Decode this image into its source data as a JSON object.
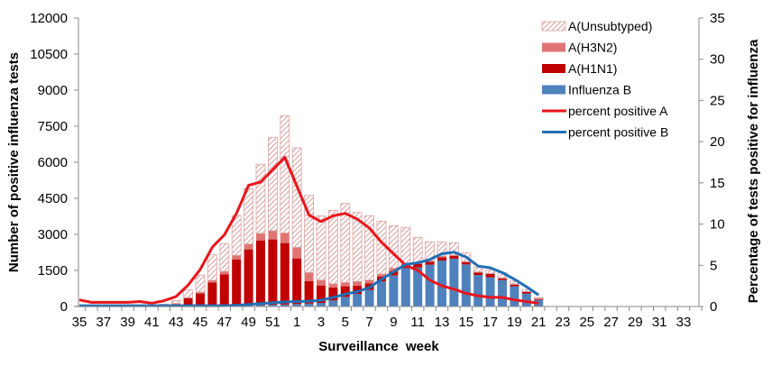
{
  "chart_data": {
    "type": "bar",
    "stacked": true,
    "xlabel": "Surveillance  week",
    "ylabel": "Number of positive influenza tests",
    "y2label": "Percentage of tests positive for influenza",
    "ylim": [
      0,
      12000
    ],
    "yticks": [
      0,
      1500,
      3000,
      4500,
      6000,
      7500,
      9000,
      10500,
      12000
    ],
    "y2lim": [
      0,
      35
    ],
    "y2ticks": [
      0,
      5,
      10,
      15,
      20,
      25,
      30,
      35
    ],
    "grid": false,
    "legend": "top-right",
    "categories": [
      35,
      36,
      37,
      38,
      39,
      40,
      41,
      42,
      43,
      44,
      45,
      46,
      47,
      48,
      49,
      50,
      51,
      52,
      1,
      2,
      3,
      4,
      5,
      6,
      7,
      8,
      9,
      10,
      11,
      12,
      13,
      14,
      15,
      16,
      17,
      18,
      19,
      20,
      21,
      22,
      23,
      24,
      25,
      26,
      27,
      28,
      29,
      30,
      31,
      32,
      33,
      34
    ],
    "xtick_labels": [
      "35",
      "37",
      "39",
      "41",
      "43",
      "45",
      "47",
      "49",
      "51",
      "1",
      "3",
      "5",
      "7",
      "9",
      "11",
      "13",
      "15",
      "17",
      "19",
      "21",
      "23",
      "25",
      "27",
      "29",
      "31",
      "33"
    ],
    "series": [
      {
        "name": "Influenza B",
        "kind": "bar",
        "color": "#4f81bd",
        "values": [
          5,
          5,
          5,
          5,
          5,
          5,
          5,
          5,
          10,
          15,
          20,
          25,
          30,
          40,
          50,
          60,
          70,
          80,
          100,
          120,
          150,
          250,
          400,
          520,
          690,
          1040,
          1290,
          1600,
          1625,
          1740,
          1910,
          1990,
          1750,
          1310,
          1210,
          1100,
          840,
          540,
          275,
          null,
          null,
          null,
          null,
          null,
          null,
          null,
          null,
          null,
          null,
          null,
          null,
          null
        ]
      },
      {
        "name": "A(H1N1)",
        "kind": "bar",
        "color": "#c00000",
        "values": [
          5,
          5,
          5,
          5,
          5,
          5,
          5,
          35,
          90,
          325,
          520,
          975,
          1310,
          1920,
          2325,
          2690,
          2720,
          2560,
          1900,
          940,
          725,
          540,
          440,
          340,
          270,
          210,
          185,
          125,
          150,
          120,
          140,
          120,
          90,
          100,
          140,
          60,
          70,
          60,
          35,
          null,
          null,
          null,
          null,
          null,
          null,
          null,
          null,
          null,
          null,
          null,
          null,
          null
        ]
      },
      {
        "name": "A(H3N2)",
        "kind": "bar",
        "color": "#e07474",
        "values": [
          5,
          5,
          5,
          5,
          5,
          5,
          5,
          20,
          30,
          35,
          60,
          90,
          120,
          165,
          225,
          290,
          360,
          420,
          460,
          350,
          225,
          150,
          160,
          180,
          140,
          100,
          125,
          50,
          25,
          40,
          40,
          30,
          35,
          30,
          25,
          30,
          30,
          25,
          30,
          null,
          null,
          null,
          null,
          null,
          null,
          null,
          null,
          null,
          null,
          null,
          null,
          null
        ]
      },
      {
        "name": "A(Unsubtyped)",
        "kind": "bar-hatched",
        "color": "#d9a3a3",
        "values": [
          10,
          10,
          10,
          10,
          10,
          10,
          10,
          40,
          120,
          315,
          710,
          1060,
          1160,
          1665,
          2310,
          2880,
          3890,
          4880,
          4140,
          3215,
          2675,
          3060,
          3290,
          2870,
          2675,
          2200,
          1760,
          1515,
          1075,
          790,
          600,
          510,
          365,
          185,
          150,
          220,
          120,
          85,
          35,
          null,
          null,
          null,
          null,
          null,
          null,
          null,
          null,
          null,
          null,
          null,
          null,
          null
        ]
      },
      {
        "name": "percent positive A",
        "kind": "line",
        "axis": "right",
        "color": "#e8161b",
        "values": [
          0.8,
          0.5,
          0.5,
          0.5,
          0.5,
          0.6,
          0.4,
          0.7,
          1.2,
          2.6,
          4.5,
          7.2,
          8.7,
          11.3,
          14.7,
          15.1,
          16.6,
          18.1,
          14.6,
          11.1,
          10.3,
          11.0,
          11.3,
          10.6,
          9.5,
          7.8,
          6.4,
          5.0,
          4.4,
          3.2,
          2.5,
          2.1,
          1.6,
          1.3,
          1.1,
          1.1,
          0.8,
          0.6,
          0.4,
          null,
          null,
          null,
          null,
          null,
          null,
          null,
          null,
          null,
          null,
          null,
          null,
          null
        ]
      },
      {
        "name": "percent positive B",
        "kind": "line",
        "axis": "right",
        "color": "#1f6fb5",
        "values": [
          0.1,
          0.1,
          0.1,
          0.1,
          0.1,
          0.1,
          0.1,
          0.1,
          0.1,
          0.1,
          0.1,
          0.1,
          0.1,
          0.15,
          0.25,
          0.35,
          0.45,
          0.55,
          0.6,
          0.65,
          0.75,
          1.1,
          1.5,
          1.8,
          2.3,
          3.3,
          4.2,
          5.1,
          5.3,
          5.7,
          6.4,
          6.6,
          6.0,
          4.9,
          4.7,
          4.1,
          3.3,
          2.4,
          1.4,
          null,
          null,
          null,
          null,
          null,
          null,
          null,
          null,
          null,
          null,
          null,
          null,
          null
        ]
      }
    ],
    "legend_order": [
      "A(Unsubtyped)",
      "A(H3N2)",
      "A(H1N1)",
      "Influenza B",
      "percent positive A",
      "percent positive B"
    ]
  }
}
